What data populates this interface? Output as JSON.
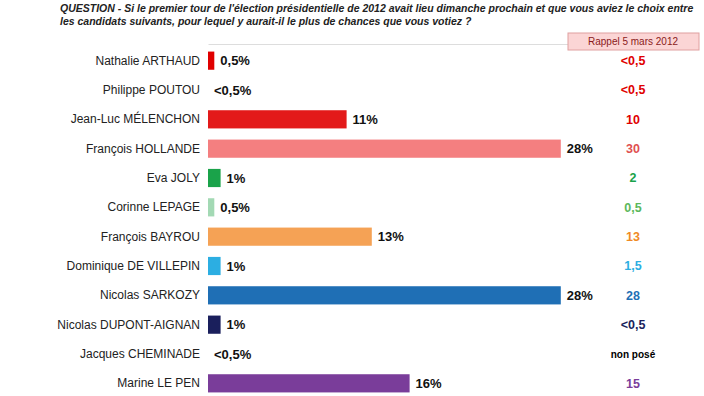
{
  "chart_data": {
    "type": "bar",
    "orientation": "horizontal",
    "title": "QUESTION - Si le premier tour de l'élection présidentielle de 2012 avait lieu dimanche prochain et que vous aviez le choix entre les candidats suivants, pour lequel y aurait-il le plus de chances que vous votiez ?",
    "categories": [
      "Nathalie ARTHAUD",
      "Philippe POUTOU",
      "Jean-Luc MÉLENCHON",
      "François HOLLANDE",
      "Eva JOLY",
      "Corinne LEPAGE",
      "François BAYROU",
      "Dominique DE VILLEPIN",
      "Nicolas SARKOZY",
      "Nicolas DUPONT-AIGNAN",
      "Jacques CHEMINADE",
      "Marine LE PEN"
    ],
    "xlim": [
      0,
      30
    ],
    "tick_labels": false,
    "grid": false,
    "data_labels": true,
    "series": [
      {
        "type": "bar",
        "values": [
          0.5,
          0,
          11,
          28,
          1,
          0.5,
          13,
          1,
          28,
          1,
          0,
          16
        ],
        "value_labels": [
          "0,5%",
          "<0,5%",
          "11%",
          "28%",
          "1%",
          "0,5%",
          "13%",
          "1%",
          "28%",
          "1%",
          "<0,5%",
          "16%"
        ],
        "colors": [
          "#e00000",
          "#c00000",
          "#e31a1a",
          "#f47f80",
          "#1aa34a",
          "#a3d9b4",
          "#f5a255",
          "#2caee2",
          "#1f6fb5",
          "#1a1f5c",
          "#888888",
          "#7a3d9a"
        ]
      },
      {
        "type": "text",
        "name": "Rappel 5 mars 2012",
        "values": [
          0,
          0,
          10,
          30,
          2,
          0.5,
          13,
          1.5,
          28,
          0,
          null,
          15
        ],
        "value_labels": [
          "<0,5",
          "<0,5",
          "10",
          "30",
          "2",
          "0,5",
          "13",
          "1,5",
          "28",
          "<0,5",
          "non posé",
          "15"
        ],
        "colors": [
          "#e00000",
          "#e00000",
          "#e00000",
          "#e05050",
          "#1aa34a",
          "#5cb85c",
          "#f08a24",
          "#2caee2",
          "#1f6fb5",
          "#1a1f5c",
          "#000000",
          "#7a3d9a"
        ]
      }
    ]
  }
}
